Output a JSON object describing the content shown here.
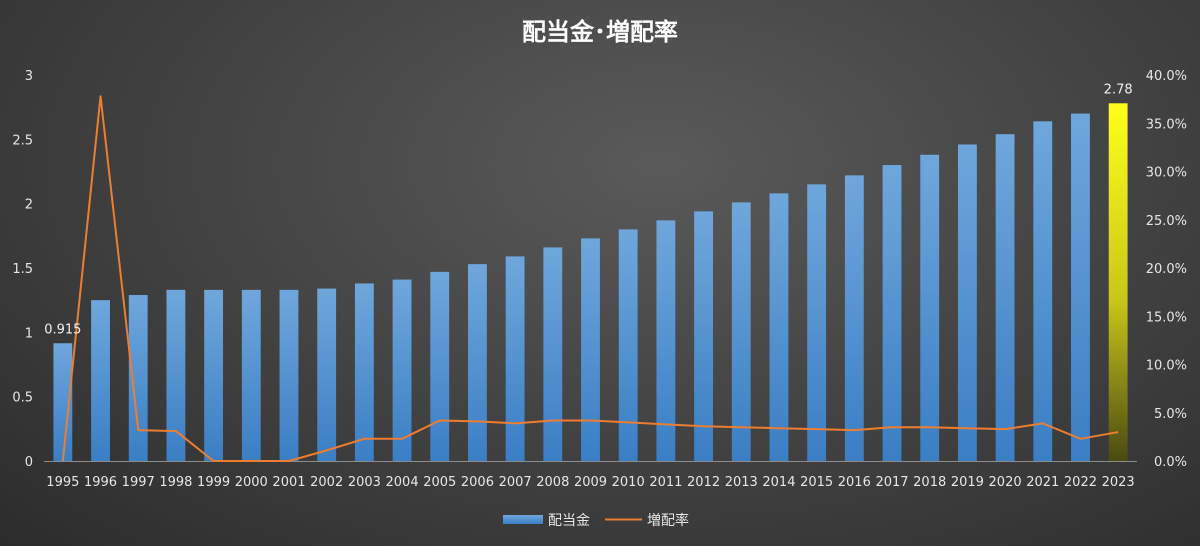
{
  "chart_data": {
    "type": "bar",
    "title": "配当金･増配率",
    "categories": [
      "1995",
      "1996",
      "1997",
      "1998",
      "1999",
      "2000",
      "2001",
      "2002",
      "2003",
      "2004",
      "2005",
      "2006",
      "2007",
      "2008",
      "2009",
      "2010",
      "2011",
      "2012",
      "2013",
      "2014",
      "2015",
      "2016",
      "2017",
      "2018",
      "2019",
      "2020",
      "2021",
      "2022",
      "2023"
    ],
    "series": [
      {
        "name": "配当金",
        "type": "bar",
        "axis": "left",
        "color": "#5b9bd5",
        "values": [
          0.915,
          1.25,
          1.29,
          1.33,
          1.33,
          1.33,
          1.33,
          1.34,
          1.38,
          1.41,
          1.47,
          1.53,
          1.59,
          1.66,
          1.73,
          1.8,
          1.87,
          1.94,
          2.01,
          2.08,
          2.15,
          2.22,
          2.3,
          2.38,
          2.46,
          2.54,
          2.64,
          2.7,
          2.78
        ]
      },
      {
        "name": "増配率",
        "type": "line",
        "axis": "right",
        "color": "#ed7d31",
        "values": [
          0.0,
          37.8,
          3.2,
          3.1,
          0.0,
          0.0,
          0.0,
          1.1,
          2.3,
          2.3,
          4.2,
          4.1,
          3.9,
          4.2,
          4.2,
          4.0,
          3.8,
          3.6,
          3.5,
          3.4,
          3.3,
          3.2,
          3.5,
          3.5,
          3.4,
          3.3,
          3.9,
          2.3,
          3.0
        ]
      }
    ],
    "highlight": {
      "index": 28,
      "color_top": "#ffff1a",
      "color_bottom": "#4a4a12"
    },
    "data_labels": [
      {
        "index": 0,
        "text": "0.915"
      },
      {
        "index": 28,
        "text": "2.78"
      }
    ],
    "y_left": {
      "ylim": [
        0,
        3
      ],
      "ticks": [
        "0",
        "0.5",
        "1",
        "1.5",
        "2",
        "2.5",
        "3"
      ]
    },
    "y_right": {
      "ylim": [
        0,
        40
      ],
      "ticks": [
        "0.0%",
        "5.0%",
        "10.0%",
        "15.0%",
        "20.0%",
        "25.0%",
        "30.0%",
        "35.0%",
        "40.0%"
      ]
    },
    "grid": false,
    "legend": {
      "placement": "bottom-center",
      "entries": [
        "配当金",
        "増配率"
      ]
    },
    "xlabel": "",
    "ylabel": ""
  }
}
